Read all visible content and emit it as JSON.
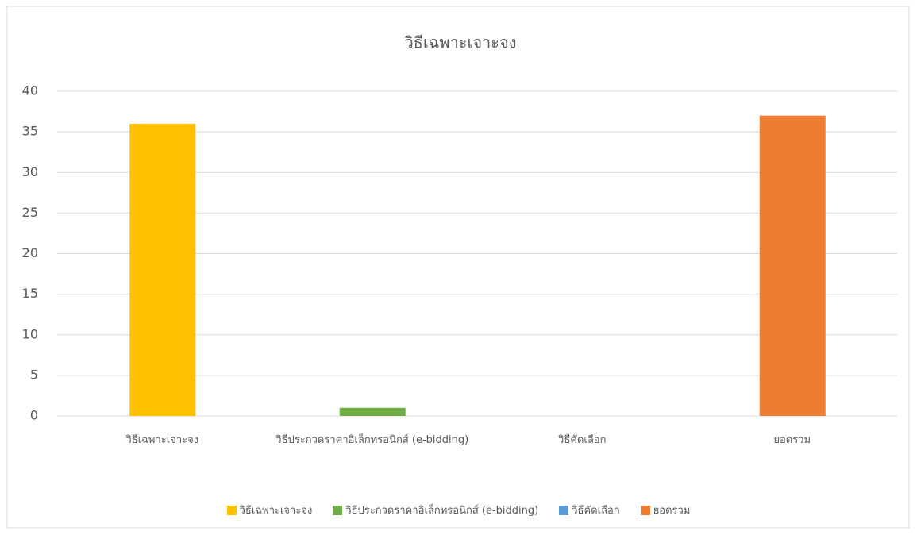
{
  "chart_data": {
    "type": "bar",
    "title": "วิธีเฉพาะเจาะจง",
    "categories": [
      "วิธีเฉพาะเจาะจง",
      "วิธีประกวดราคาอิเล็กทรอนิกส์ (e-bidding)",
      "วิธีคัดเลือก",
      "ยอดรวม"
    ],
    "values": [
      36,
      1,
      0,
      37
    ],
    "colors": [
      "#ffc000",
      "#70ad47",
      "#5b9bd5",
      "#ed7d31"
    ],
    "ylim": [
      0,
      40
    ],
    "yticks": [
      0,
      5,
      10,
      15,
      20,
      25,
      30,
      35,
      40
    ],
    "grid": true,
    "legend": "bottom"
  }
}
